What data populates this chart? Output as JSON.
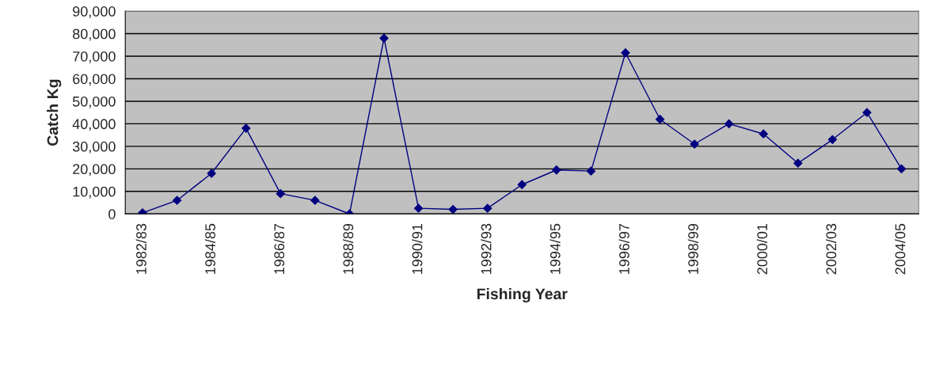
{
  "chart_data": {
    "type": "line",
    "xlabel": "Fishing Year",
    "ylabel": "Catch Kg",
    "categories": [
      "1982/83",
      null,
      "1984/85",
      null,
      "1986/87",
      null,
      "1988/89",
      null,
      "1990/91",
      null,
      "1992/93",
      null,
      "1994/95",
      null,
      "1996/97",
      null,
      "1998/99",
      null,
      "2000/01",
      null,
      "2002/03",
      null,
      "2004/05"
    ],
    "series": [
      {
        "color": "#000080",
        "values": [
          500,
          6000,
          18000,
          38000,
          9000,
          6000,
          0,
          78000,
          2500,
          2000,
          2500,
          13000,
          19500,
          19000,
          71500,
          42000,
          31000,
          40000,
          35500,
          22500,
          33000,
          45000,
          20000
        ]
      }
    ],
    "ylim": [
      0,
      90000
    ],
    "yticks": [
      {
        "value": 0,
        "label": "0"
      },
      {
        "value": 10000,
        "label": "10,000"
      },
      {
        "value": 20000,
        "label": "20,000"
      },
      {
        "value": 30000,
        "label": "30,000"
      },
      {
        "value": 40000,
        "label": "40,000"
      },
      {
        "value": 50000,
        "label": "50,000"
      },
      {
        "value": 60000,
        "label": "60,000"
      },
      {
        "value": 70000,
        "label": "70,000"
      },
      {
        "value": 80000,
        "label": "80,000"
      },
      {
        "value": 90000,
        "label": "90,000"
      }
    ],
    "grid": "y",
    "marker": "diamond",
    "line_style": "solid"
  }
}
